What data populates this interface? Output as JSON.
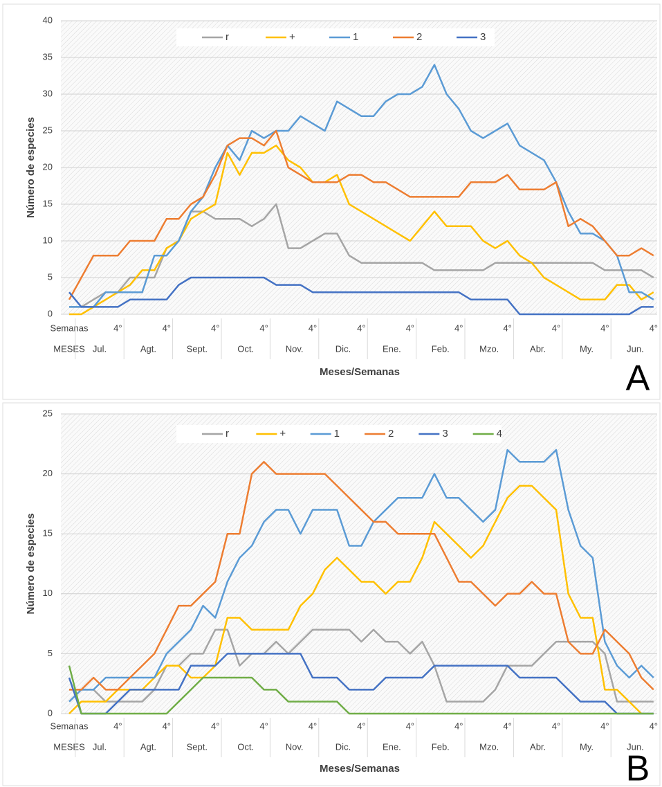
{
  "chart_data": [
    {
      "type": "line",
      "panel_label": "A",
      "ylabel": "Número de especies",
      "xlabel": "Meses/Semanas",
      "week_label": "Semanas",
      "month_label": "MESES",
      "months": [
        "Jul.",
        "Agt.",
        "Sept.",
        "Oct.",
        "Nov.",
        "Dic.",
        "Ene.",
        "Feb.",
        "Mzo.",
        "Abr.",
        "My.",
        "Jun."
      ],
      "categories": [
        null,
        null,
        null,
        null,
        "4°",
        null,
        null,
        null,
        "4°",
        null,
        null,
        null,
        "4°",
        null,
        null,
        null,
        "4°",
        null,
        null,
        null,
        "4°",
        null,
        null,
        null,
        "4°",
        null,
        null,
        null,
        "4°",
        null,
        null,
        null,
        "4°",
        null,
        null,
        null,
        "4°",
        null,
        null,
        null,
        "4°",
        null,
        null,
        null,
        "4°",
        null,
        null,
        null,
        "4°"
      ],
      "ylim": [
        0,
        40
      ],
      "yticks": [
        0,
        5,
        10,
        15,
        20,
        25,
        30,
        35,
        40
      ],
      "grid": true,
      "series": [
        {
          "name": "r",
          "color": "#a5a5a5",
          "values": [
            1,
            1,
            2,
            3,
            3,
            5,
            5,
            5,
            9,
            10,
            14,
            14,
            13,
            13,
            13,
            12,
            13,
            15,
            9,
            9,
            10,
            11,
            11,
            8,
            7,
            7,
            7,
            7,
            7,
            7,
            6,
            6,
            6,
            6,
            6,
            7,
            7,
            7,
            7,
            7,
            7,
            7,
            7,
            7,
            6,
            6,
            6,
            6,
            5
          ]
        },
        {
          "name": "+",
          "color": "#ffc000",
          "values": [
            0,
            0,
            1,
            2,
            3,
            4,
            6,
            6,
            9,
            10,
            13,
            14,
            15,
            22,
            19,
            22,
            22,
            23,
            21,
            20,
            18,
            18,
            19,
            15,
            14,
            13,
            12,
            11,
            10,
            12,
            14,
            12,
            12,
            12,
            10,
            9,
            10,
            8,
            7,
            5,
            4,
            3,
            2,
            2,
            2,
            4,
            4,
            2,
            3
          ]
        },
        {
          "name": "1",
          "color": "#5b9bd5",
          "values": [
            1,
            1,
            1,
            3,
            3,
            3,
            3,
            8,
            8,
            10,
            14,
            16,
            20,
            23,
            21,
            25,
            24,
            25,
            25,
            27,
            26,
            25,
            29,
            28,
            27,
            27,
            29,
            30,
            30,
            31,
            34,
            30,
            28,
            25,
            24,
            25,
            26,
            23,
            22,
            21,
            18,
            14,
            11,
            11,
            10,
            8,
            3,
            3,
            2
          ]
        },
        {
          "name": "2",
          "color": "#ed7d31",
          "values": [
            2,
            5,
            8,
            8,
            8,
            10,
            10,
            10,
            13,
            13,
            15,
            16,
            19,
            23,
            24,
            24,
            23,
            25,
            20,
            19,
            18,
            18,
            18,
            19,
            19,
            18,
            18,
            17,
            16,
            16,
            16,
            16,
            16,
            18,
            18,
            18,
            19,
            17,
            17,
            17,
            18,
            12,
            13,
            12,
            10,
            8,
            8,
            9,
            8
          ]
        },
        {
          "name": "3",
          "color": "#4472c4",
          "values": [
            3,
            1,
            1,
            1,
            1,
            2,
            2,
            2,
            2,
            4,
            5,
            5,
            5,
            5,
            5,
            5,
            5,
            4,
            4,
            4,
            3,
            3,
            3,
            3,
            3,
            3,
            3,
            3,
            3,
            3,
            3,
            3,
            3,
            2,
            2,
            2,
            2,
            0,
            0,
            0,
            0,
            0,
            0,
            0,
            0,
            0,
            0,
            1,
            1
          ]
        }
      ]
    },
    {
      "type": "line",
      "panel_label": "B",
      "ylabel": "Número de especies",
      "xlabel": "Meses/Semanas",
      "week_label": "Semanas",
      "month_label": "MESES",
      "months": [
        "Jul.",
        "Agt.",
        "Sept.",
        "Oct.",
        "Nov.",
        "Dic.",
        "Ene.",
        "Feb.",
        "Mzo.",
        "Abr.",
        "My.",
        "Jun."
      ],
      "categories": [
        null,
        null,
        null,
        null,
        "4°",
        null,
        null,
        null,
        "4°",
        null,
        null,
        null,
        "4°",
        null,
        null,
        null,
        "4°",
        null,
        null,
        null,
        "4°",
        null,
        null,
        null,
        "4°",
        null,
        null,
        null,
        "4°",
        null,
        null,
        null,
        "4°",
        null,
        null,
        null,
        "4°",
        null,
        null,
        null,
        "4°",
        null,
        null,
        null,
        "4°",
        null,
        null,
        null,
        "4°"
      ],
      "ylim": [
        0,
        25
      ],
      "yticks": [
        0,
        5,
        10,
        15,
        20,
        25
      ],
      "grid": true,
      "series": [
        {
          "name": "r",
          "color": "#a5a5a5",
          "values": [
            2,
            2,
            2,
            1,
            1,
            1,
            1,
            2,
            4,
            4,
            5,
            5,
            7,
            7,
            4,
            5,
            5,
            6,
            5,
            6,
            7,
            7,
            7,
            7,
            6,
            7,
            6,
            6,
            5,
            6,
            4,
            1,
            1,
            1,
            1,
            2,
            4,
            4,
            4,
            5,
            6,
            6,
            6,
            6,
            5,
            1,
            1,
            1,
            1
          ]
        },
        {
          "name": "+",
          "color": "#ffc000",
          "values": [
            0,
            1,
            1,
            1,
            2,
            2,
            2,
            3,
            4,
            4,
            3,
            3,
            4,
            8,
            8,
            7,
            7,
            7,
            7,
            9,
            10,
            12,
            13,
            12,
            11,
            11,
            10,
            11,
            11,
            13,
            16,
            15,
            14,
            13,
            14,
            16,
            18,
            19,
            19,
            18,
            17,
            10,
            8,
            8,
            2,
            2,
            1,
            0,
            null
          ]
        },
        {
          "name": "1",
          "color": "#5b9bd5",
          "values": [
            1,
            2,
            2,
            3,
            3,
            3,
            3,
            3,
            5,
            6,
            7,
            9,
            8,
            11,
            13,
            14,
            16,
            17,
            17,
            15,
            17,
            17,
            17,
            14,
            14,
            16,
            17,
            18,
            18,
            18,
            20,
            18,
            18,
            17,
            16,
            17,
            22,
            21,
            21,
            21,
            22,
            17,
            14,
            13,
            6,
            4,
            3,
            4,
            3
          ]
        },
        {
          "name": "2",
          "color": "#ed7d31",
          "values": [
            2,
            2,
            3,
            2,
            2,
            3,
            4,
            5,
            7,
            9,
            9,
            10,
            11,
            15,
            15,
            20,
            21,
            20,
            20,
            20,
            20,
            20,
            19,
            18,
            17,
            16,
            16,
            15,
            15,
            15,
            15,
            13,
            11,
            11,
            10,
            9,
            10,
            10,
            11,
            10,
            10,
            6,
            5,
            5,
            7,
            6,
            5,
            3,
            2
          ]
        },
        {
          "name": "3",
          "color": "#4472c4",
          "values": [
            3,
            0,
            0,
            0,
            1,
            2,
            2,
            2,
            2,
            2,
            4,
            4,
            4,
            5,
            5,
            5,
            5,
            5,
            5,
            5,
            3,
            3,
            3,
            2,
            2,
            2,
            3,
            3,
            3,
            3,
            4,
            4,
            4,
            4,
            4,
            4,
            4,
            3,
            3,
            3,
            3,
            2,
            1,
            1,
            1,
            0,
            0,
            0,
            0
          ]
        },
        {
          "name": "4",
          "color": "#70ad47",
          "values": [
            4,
            0,
            0,
            0,
            0,
            0,
            0,
            0,
            0,
            1,
            2,
            3,
            3,
            3,
            3,
            3,
            2,
            2,
            1,
            1,
            1,
            1,
            1,
            0,
            0,
            0,
            0,
            0,
            0,
            0,
            0,
            0,
            0,
            0,
            0,
            0,
            0,
            0,
            0,
            0,
            0,
            0,
            0,
            0,
            0,
            0,
            0,
            0,
            0
          ]
        }
      ]
    }
  ]
}
